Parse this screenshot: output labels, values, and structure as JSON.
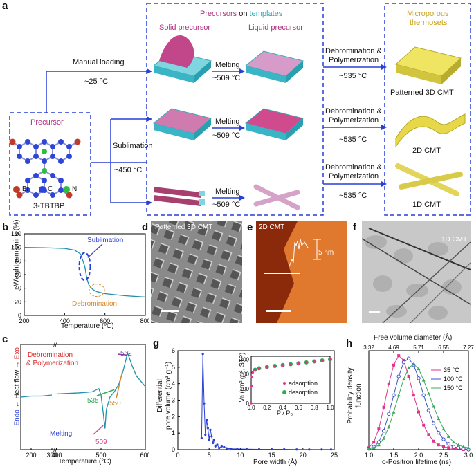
{
  "panel_a": {
    "letter": "a",
    "precursor_box": {
      "title": "Precursor",
      "legend": [
        "Br",
        "C",
        "N"
      ],
      "name": "3-TBTBP"
    },
    "routes": {
      "manual_loading": "Manual loading",
      "manual_temp": "~25 °C",
      "sublimation": "Sublimation",
      "sublimation_temp": "~450 °C"
    },
    "templates_box": {
      "title_part1": "Precursors",
      "title_part2": " on ",
      "title_part3": "templates",
      "solid": "Solid precursor",
      "liquid": "Liquid precursor",
      "melting": "Melting",
      "melt_temp": "~509 °C"
    },
    "debrom": {
      "line1": "Debromination &",
      "line2": "Polymerization",
      "temp": "~535 °C"
    },
    "products_box": {
      "title1": "Microporous",
      "title2": "thermosets",
      "labels": [
        "Patterned 3D CMT",
        "2D CMT",
        "1D CMT"
      ]
    }
  },
  "panel_b": {
    "letter": "b",
    "ylabel": "Weight remaining (%)",
    "xlabel": "Temperature (ºC)",
    "annotations": [
      "Sublimation",
      "Debromination"
    ],
    "chart_data": {
      "type": "line",
      "x": [
        200,
        300,
        400,
        450,
        480,
        500,
        510,
        520,
        540,
        560,
        600,
        700,
        800
      ],
      "y": [
        100,
        99.5,
        98.5,
        96,
        90,
        72,
        55,
        45,
        38,
        35,
        32,
        29,
        27
      ],
      "xlim": [
        200,
        800
      ],
      "ylim": [
        0,
        120
      ],
      "xticks": [
        "200",
        "400",
        "600",
        "800"
      ],
      "yticks": [
        "0",
        "20",
        "40",
        "60",
        "80",
        "100",
        "120"
      ]
    }
  },
  "panel_c": {
    "letter": "c",
    "ylabel_exo": "Exo",
    "ylabel_mid": "Heat flow",
    "ylabel_endo": "Endo",
    "xlabel": "Temperature (°C)",
    "annotations": {
      "debrom1": "Debromination",
      "debrom2": "& Polymerization",
      "melting": "Melting",
      "t509": "509",
      "t535": "535",
      "t550": "550",
      "t562": "562"
    },
    "chart_data": {
      "type": "line",
      "x": [
        150,
        200,
        250,
        300,
        400,
        450,
        480,
        495,
        500,
        505,
        509,
        512,
        520,
        530,
        540,
        550,
        560,
        570,
        580,
        600
      ],
      "y": [
        0.5,
        0.51,
        0.51,
        0.52,
        0.53,
        0.54,
        0.55,
        0.58,
        0.52,
        0.35,
        0.2,
        0.38,
        0.5,
        0.55,
        0.62,
        0.75,
        0.92,
        0.8,
        0.7,
        0.6
      ],
      "xticks": [
        "200",
        "300",
        "400",
        "500",
        "600"
      ]
    }
  },
  "panel_d": {
    "letter": "d",
    "label": "Patterned 3D CMT"
  },
  "panel_e": {
    "letter": "e",
    "label": "2D CMT",
    "scale": "5 nm"
  },
  "panel_f": {
    "letter": "f",
    "label": "1D CMT"
  },
  "panel_g": {
    "letter": "g",
    "ylabel1": "Differential",
    "ylabel2": "pore volume (cm³ g⁻¹)",
    "xlabel": "Pore width (Å)",
    "chart_data": {
      "type": "line",
      "x": [
        3.8,
        4.0,
        4.2,
        4.4,
        4.6,
        4.8,
        5.0,
        5.2,
        5.4,
        5.6,
        5.8,
        6.0,
        6.3,
        6.6,
        7.0,
        7.4,
        7.8,
        8.5,
        9.5,
        11,
        13,
        15,
        17,
        19,
        21,
        23,
        24.5
      ],
      "y": [
        0.7,
        5.8,
        2.8,
        0.9,
        1.8,
        1.3,
        0.6,
        1.2,
        0.8,
        0.4,
        0.6,
        0.2,
        0.3,
        0.1,
        0.2,
        0.15,
        0.08,
        0.05,
        0.04,
        0.03,
        0.02,
        0.02,
        0.02,
        0.01,
        0.01,
        0.01,
        0.01
      ],
      "xlim": [
        0,
        25
      ],
      "ylim": [
        0,
        6
      ],
      "xticks": [
        "0",
        "5",
        "10",
        "15",
        "20",
        "25"
      ],
      "yticks": [
        "0",
        "1",
        "2",
        "3",
        "4",
        "5",
        "6"
      ]
    },
    "inset": {
      "ylabel": "Va (cm³ g⁻¹, STP)",
      "xlabel": "P / P₀",
      "legend": [
        "adsorption",
        "desorption"
      ],
      "xticks": [
        "0.0",
        "0.2",
        "0.4",
        "0.6",
        "0.8",
        "1.0"
      ],
      "yticks": [
        "0",
        "100",
        "200",
        "300"
      ],
      "chart_data": {
        "type": "scatter",
        "x": [
          0.0,
          0.005,
          0.01,
          0.02,
          0.05,
          0.1,
          0.2,
          0.3,
          0.4,
          0.5,
          0.6,
          0.7,
          0.8,
          0.9,
          1.0
        ],
        "adsorption": [
          0,
          120,
          180,
          210,
          225,
          235,
          245,
          252,
          258,
          264,
          270,
          276,
          283,
          290,
          298
        ],
        "desorption": [
          null,
          null,
          null,
          null,
          228,
          238,
          247,
          254,
          260,
          266,
          272,
          278,
          285,
          292,
          298
        ],
        "xlim": [
          0,
          1
        ],
        "ylim": [
          0,
          320
        ]
      }
    }
  },
  "panel_h": {
    "letter": "h",
    "top_label": "Free volume diameter (Å)",
    "top_ticks": [
      "3.32",
      "4.69",
      "5.71",
      "6.55",
      "7.27"
    ],
    "ylabel1": "Probability density",
    "ylabel2": "function",
    "xlabel": "o-Positron lifetime (ns)",
    "xticks": [
      "1.0",
      "1.5",
      "2.0",
      "2.5",
      "3.0"
    ],
    "legend": [
      "35 °C",
      "100 °C",
      "150 °C"
    ],
    "colors": [
      "#e0338c",
      "#3b55c8",
      "#3aa85a"
    ],
    "chart_data": {
      "type": "line",
      "x": [
        1.0,
        1.1,
        1.2,
        1.3,
        1.4,
        1.5,
        1.6,
        1.7,
        1.8,
        1.9,
        2.0,
        2.1,
        2.2,
        2.3,
        2.4,
        2.5,
        2.6,
        2.7,
        2.8,
        2.9,
        3.0
      ],
      "series": [
        {
          "name": "35 °C",
          "values": [
            0.02,
            0.08,
            0.22,
            0.45,
            0.7,
            0.9,
            1.0,
            0.95,
            0.78,
            0.58,
            0.4,
            0.26,
            0.16,
            0.09,
            0.05,
            0.03,
            0.02,
            0.01,
            0.01,
            0,
            0
          ]
        },
        {
          "name": "100 °C",
          "values": [
            0.01,
            0.03,
            0.08,
            0.2,
            0.38,
            0.58,
            0.78,
            0.93,
            0.97,
            0.9,
            0.76,
            0.58,
            0.42,
            0.28,
            0.18,
            0.11,
            0.06,
            0.03,
            0.02,
            0.01,
            0
          ]
        },
        {
          "name": "150 °C",
          "values": [
            0.01,
            0.02,
            0.05,
            0.12,
            0.24,
            0.4,
            0.58,
            0.75,
            0.87,
            0.91,
            0.86,
            0.74,
            0.6,
            0.46,
            0.33,
            0.22,
            0.14,
            0.08,
            0.05,
            0.03,
            0.02
          ]
        }
      ]
    }
  }
}
